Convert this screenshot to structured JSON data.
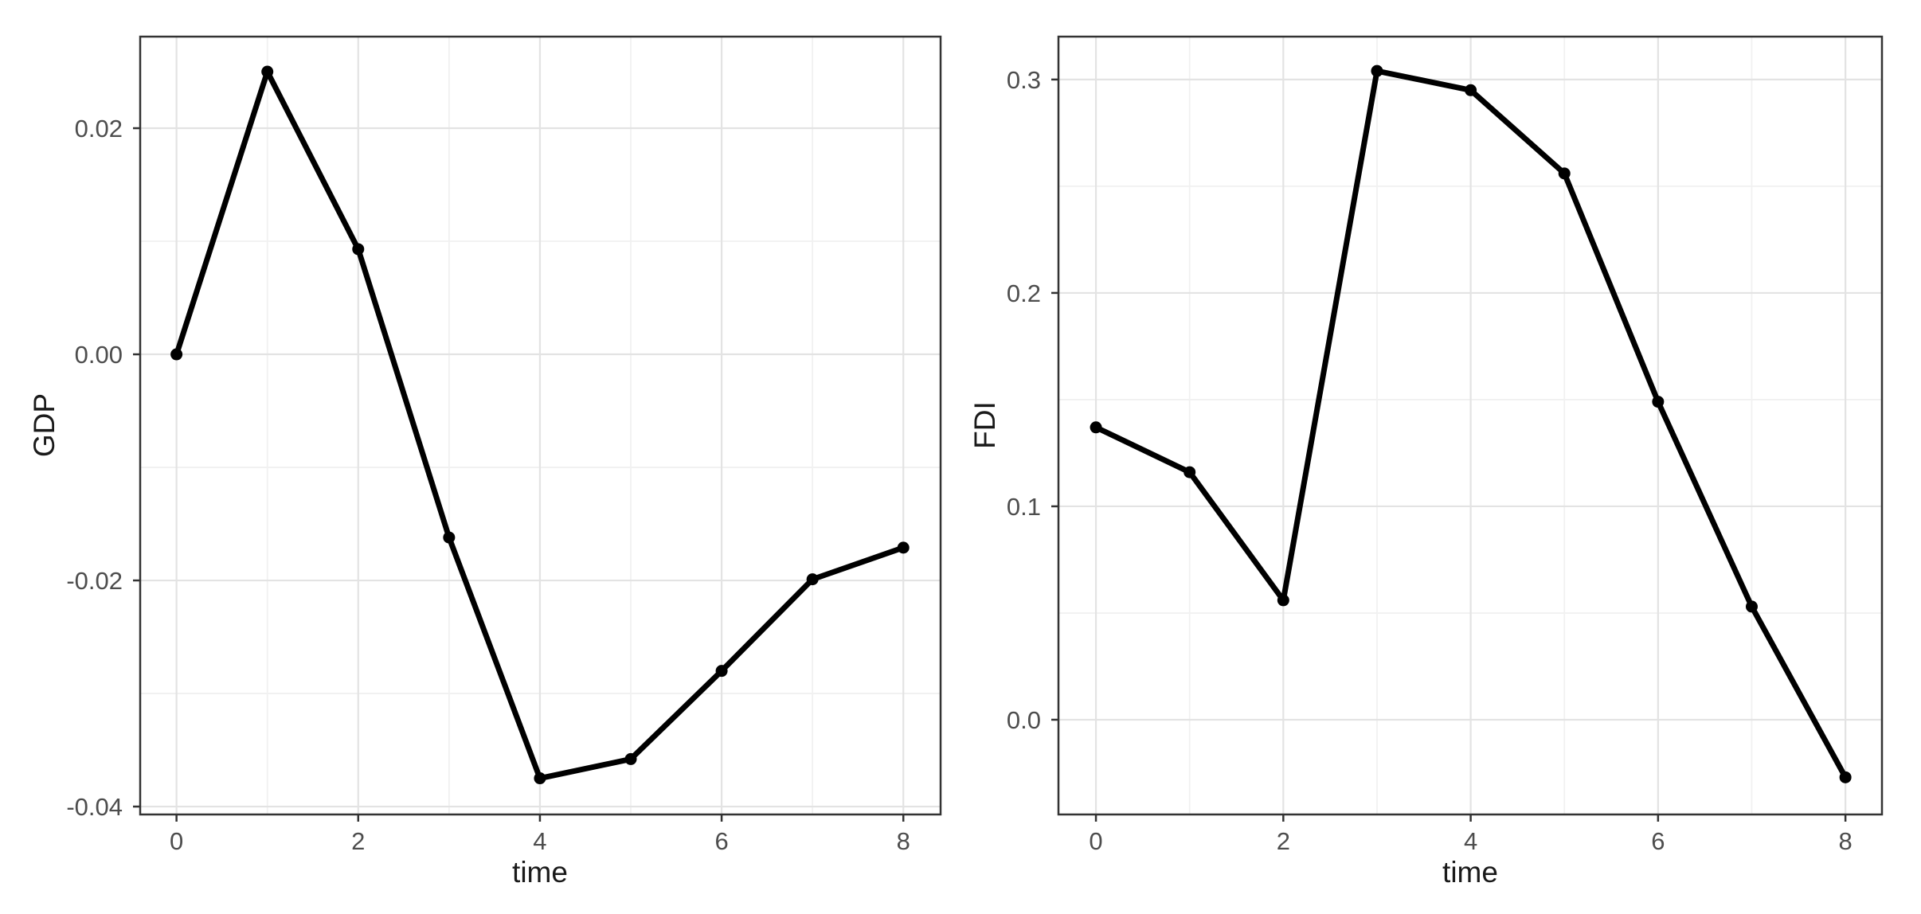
{
  "figure": {
    "description": "Two-panel impulse-response style line chart: GDP and FDI over time",
    "background_color": "#ffffff",
    "panel_border_color": "#333333",
    "grid_major_color": "#e3e3e3",
    "grid_minor_color": "#f1f1f1",
    "line_color": "#000000",
    "marker_color": "#000000",
    "tick_label_color": "#4d4d4d",
    "axis_title_color": "#1a1a1a"
  },
  "chart_data": [
    {
      "type": "line",
      "title": "",
      "xlabel": "time",
      "ylabel": "GDP",
      "x": [
        0,
        1,
        2,
        3,
        4,
        5,
        6,
        7,
        8
      ],
      "values": [
        0.0,
        0.025,
        0.0093,
        -0.0162,
        -0.0375,
        -0.0358,
        -0.028,
        -0.0199,
        -0.0171
      ],
      "xlim": [
        -0.4,
        8.41
      ],
      "ylim": [
        -0.0407,
        0.0281
      ],
      "xticks": {
        "major": [
          0,
          2,
          4,
          6,
          8
        ],
        "minor": [
          1,
          3,
          5,
          7
        ],
        "labels": [
          "0",
          "2",
          "4",
          "6",
          "8"
        ]
      },
      "yticks": {
        "major": [
          0.02,
          0.0,
          -0.02,
          -0.04
        ],
        "minor": [
          0.01,
          -0.01,
          -0.03
        ],
        "labels": [
          "0.02",
          "0.00",
          "-0.02",
          "-0.04"
        ]
      },
      "grid": "major+minor",
      "legend": "none",
      "marker": "filled-circle"
    },
    {
      "type": "line",
      "title": "",
      "xlabel": "time",
      "ylabel": "FDI",
      "x": [
        0,
        1,
        2,
        3,
        4,
        5,
        6,
        7,
        8
      ],
      "values": [
        0.137,
        0.116,
        0.056,
        0.304,
        0.295,
        0.256,
        0.149,
        0.053,
        -0.027
      ],
      "xlim": [
        -0.4,
        8.39
      ],
      "ylim": [
        -0.0444,
        0.3201
      ],
      "xticks": {
        "major": [
          0,
          2,
          4,
          6,
          8
        ],
        "minor": [
          1,
          3,
          5,
          7
        ],
        "labels": [
          "0",
          "2",
          "4",
          "6",
          "8"
        ]
      },
      "yticks": {
        "major": [
          0.3,
          0.2,
          0.1,
          0.0
        ],
        "minor": [
          0.25,
          0.15,
          0.05
        ],
        "labels": [
          "0.3",
          "0.2",
          "0.1",
          "0.0"
        ]
      },
      "grid": "major+minor",
      "legend": "none",
      "marker": "filled-circle"
    }
  ]
}
